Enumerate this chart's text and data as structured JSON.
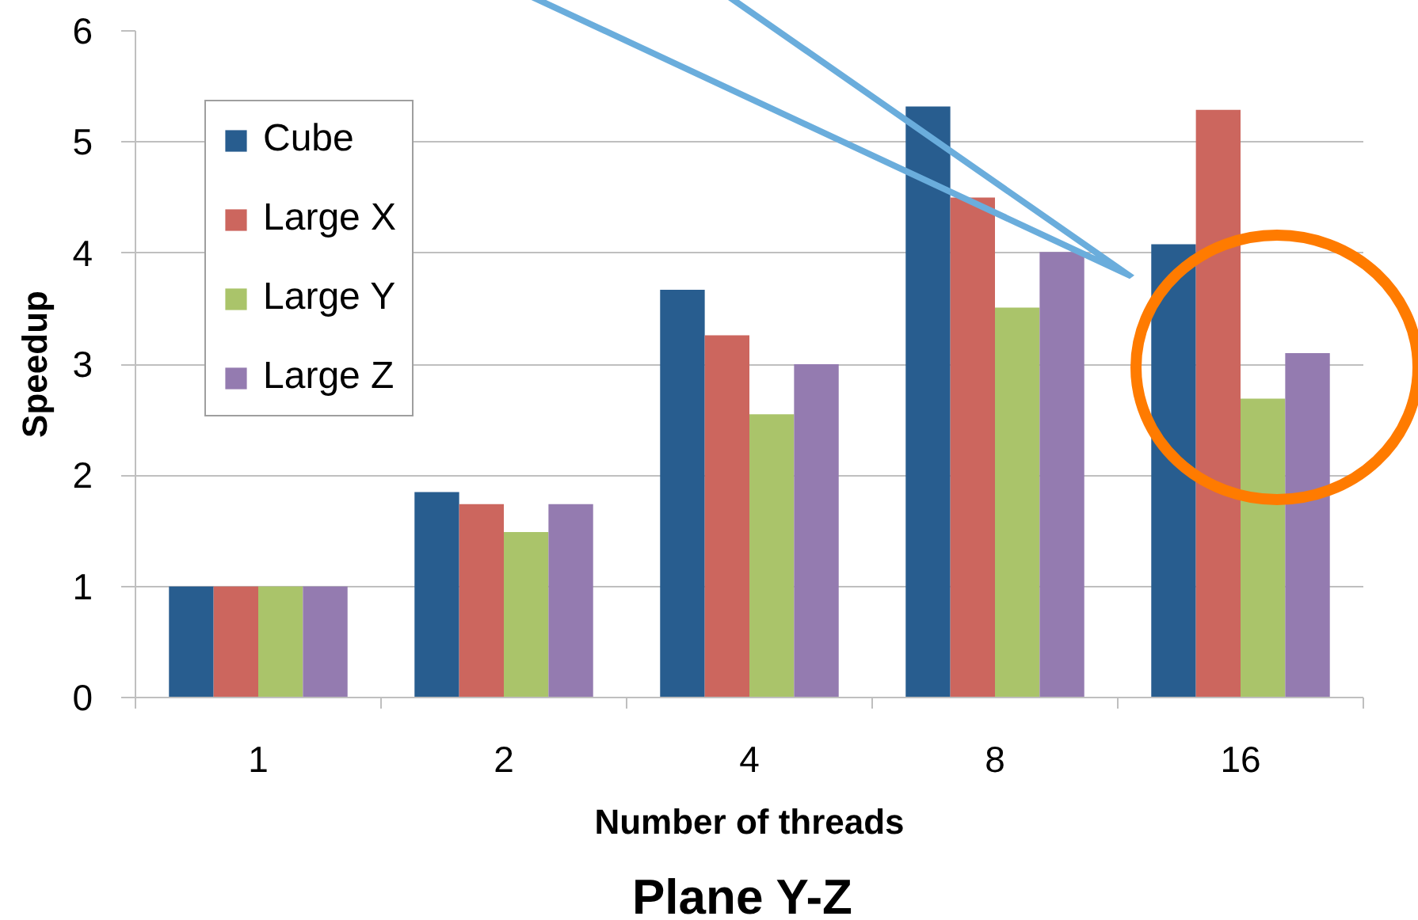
{
  "chart_data": {
    "type": "bar",
    "title": "Plane Y-Z",
    "xlabel": "Number of threads",
    "ylabel": "Speedup",
    "categories": [
      "1",
      "2",
      "4",
      "8",
      "16"
    ],
    "series": [
      {
        "name": "Cube",
        "color": "#285d8f",
        "values": [
          1.0,
          1.85,
          3.67,
          5.32,
          4.08
        ]
      },
      {
        "name": "Large X",
        "color": "#cc665e",
        "values": [
          1.0,
          1.74,
          3.26,
          4.5,
          5.29
        ]
      },
      {
        "name": "Large Y",
        "color": "#aac46a",
        "values": [
          1.0,
          1.49,
          2.55,
          3.51,
          2.69
        ]
      },
      {
        "name": "Large Z",
        "color": "#947bb0",
        "values": [
          1.0,
          1.74,
          3.0,
          4.01,
          3.1
        ]
      }
    ],
    "ylim": [
      0,
      6
    ],
    "yticks": [
      0,
      1,
      2,
      3,
      4,
      5,
      6
    ],
    "grid": "y",
    "legend": "top left"
  }
}
